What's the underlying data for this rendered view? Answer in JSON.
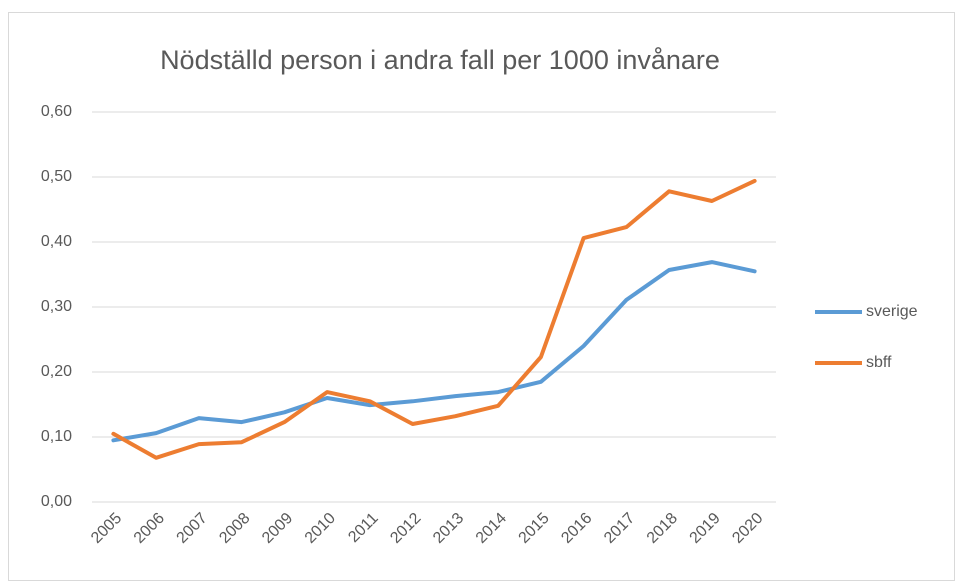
{
  "chart_data": {
    "type": "line",
    "title": "Nödställd person i andra fall per 1000 invånare",
    "categories": [
      "2005",
      "2006",
      "2007",
      "2008",
      "2009",
      "2010",
      "2011",
      "2012",
      "2013",
      "2014",
      "2015",
      "2016",
      "2017",
      "2018",
      "2019",
      "2020"
    ],
    "series": [
      {
        "name": "sverige",
        "color": "#5b9bd5",
        "values": [
          0.095,
          0.106,
          0.129,
          0.123,
          0.138,
          0.16,
          0.149,
          0.155,
          0.163,
          0.169,
          0.185,
          0.24,
          0.311,
          0.357,
          0.369,
          0.355
        ]
      },
      {
        "name": "sbff",
        "color": "#ed7d31",
        "values": [
          0.105,
          0.068,
          0.089,
          0.092,
          0.123,
          0.169,
          0.155,
          0.12,
          0.132,
          0.148,
          0.223,
          0.406,
          0.423,
          0.478,
          0.463,
          0.494
        ]
      }
    ],
    "ylim": [
      0,
      0.6
    ],
    "yticks": [
      {
        "value": 0,
        "label": "0,00"
      },
      {
        "value": 0.1,
        "label": "0,10"
      },
      {
        "value": 0.2,
        "label": "0,20"
      },
      {
        "value": 0.3,
        "label": "0,30"
      },
      {
        "value": 0.4,
        "label": "0,40"
      },
      {
        "value": 0.5,
        "label": "0,50"
      },
      {
        "value": 0.6,
        "label": "0,60"
      }
    ],
    "grid": true,
    "legend": "right"
  }
}
